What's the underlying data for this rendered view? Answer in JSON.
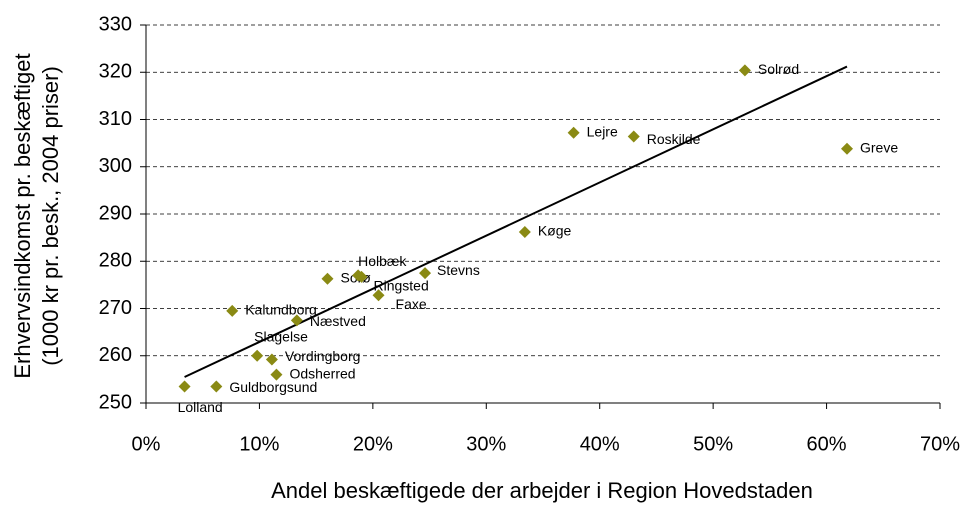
{
  "chart_data": {
    "type": "scatter",
    "xlabel": "Andel beskæftigede der arbejder i Region Hovedstaden",
    "ylabel": [
      "Erhvervsindkomst pr. beskæftiget",
      "(1000 kr pr. besk., 2004 priser)"
    ],
    "series": [
      {
        "color": "#8a8a14",
        "labels": [
          "Lolland",
          "Guldborgsund",
          "Odsherred",
          "Vordingborg",
          "Slagelse",
          "Kalundborg",
          "Næstved",
          "Sorø",
          "Holbæk",
          "Ringsted",
          "Faxe",
          "Stevns",
          "Køge",
          "Lejre",
          "Roskilde",
          "Solrød",
          "Greve"
        ],
        "x": [
          3.4,
          6.2,
          11.5,
          11.1,
          9.8,
          7.6,
          13.3,
          16.0,
          18.7,
          19.0,
          20.5,
          24.6,
          33.4,
          37.7,
          43.0,
          52.8,
          61.8
        ],
        "values": [
          253.5,
          253.5,
          256.0,
          259.2,
          260.0,
          269.5,
          267.5,
          276.3,
          277.0,
          276.7,
          272.8,
          277.5,
          286.2,
          307.2,
          306.4,
          320.4,
          303.8
        ]
      }
    ],
    "trendline": {
      "x": [
        3.4,
        61.8
      ],
      "values": [
        255.5,
        321.2
      ],
      "color": "#000000"
    },
    "xlim": [
      0,
      70
    ],
    "xticks": [
      {
        "value": 0,
        "label": "0%"
      },
      {
        "value": 10,
        "label": "10%"
      },
      {
        "value": 20,
        "label": "20%"
      },
      {
        "value": 30,
        "label": "30%"
      },
      {
        "value": 40,
        "label": "40%"
      },
      {
        "value": 50,
        "label": "50%"
      },
      {
        "value": 60,
        "label": "60%"
      },
      {
        "value": 70,
        "label": "70%"
      }
    ],
    "ylim": [
      250,
      330
    ],
    "yticks": [
      250,
      260,
      270,
      280,
      290,
      300,
      310,
      320,
      330
    ],
    "grid": true
  }
}
